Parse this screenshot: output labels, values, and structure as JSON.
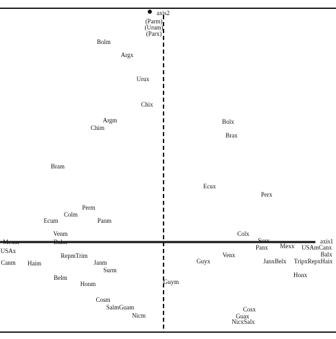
{
  "chart_data": {
    "type": "scatter",
    "x_label": "axis1",
    "y_label": "axis2",
    "xlim": [
      -2.38,
      2.51
    ],
    "ylim": [
      -1.31,
      3.4
    ],
    "points": [
      {
        "label": "(Parm)",
        "x": -0.14,
        "y": 3.2
      },
      {
        "label": "(Urum)",
        "x": -0.14,
        "y": 3.11
      },
      {
        "label": "(Parx)",
        "x": -0.14,
        "y": 3.02
      },
      {
        "label": "Bolm",
        "x": -0.87,
        "y": 2.9
      },
      {
        "label": "Argx",
        "x": -0.53,
        "y": 2.71
      },
      {
        "label": "Urux",
        "x": -0.3,
        "y": 2.36
      },
      {
        "label": "Chix",
        "x": -0.24,
        "y": 1.99
      },
      {
        "label": "Argm",
        "x": -0.78,
        "y": 1.76
      },
      {
        "label": "Chim",
        "x": -0.96,
        "y": 1.65
      },
      {
        "label": "Bolx",
        "x": 0.94,
        "y": 1.74
      },
      {
        "label": "Brax",
        "x": 0.99,
        "y": 1.54
      },
      {
        "label": "Bram",
        "x": -1.54,
        "y": 1.09
      },
      {
        "label": "Ecux",
        "x": 0.67,
        "y": 0.8
      },
      {
        "label": "Perx",
        "x": 1.5,
        "y": 0.68
      },
      {
        "label": "Perm",
        "x": -1.09,
        "y": 0.49
      },
      {
        "label": "Colm",
        "x": -1.35,
        "y": 0.39
      },
      {
        "label": "Ecum",
        "x": -1.64,
        "y": 0.3
      },
      {
        "label": "Panm",
        "x": -0.86,
        "y": 0.3
      },
      {
        "label": "Colx",
        "x": 1.16,
        "y": 0.11
      },
      {
        "label": "Venm",
        "x": -1.5,
        "y": 0.11
      },
      {
        "label": "Mexm",
        "x": -2.22,
        "y": -0.01
      },
      {
        "label": "Balm",
        "x": -1.5,
        "y": -0.01
      },
      {
        "label": "Surx",
        "x": 1.46,
        "y": 0.01
      },
      {
        "label": "Panx",
        "x": 1.43,
        "y": -0.09
      },
      {
        "label": "Mexx",
        "x": 1.8,
        "y": -0.07
      },
      {
        "label": "USAmCanx",
        "x": 2.23,
        "y": -0.09
      },
      {
        "label": "USAx",
        "x": -2.26,
        "y": -0.14
      },
      {
        "label": "RepmTrim",
        "x": -1.3,
        "y": -0.21
      },
      {
        "label": "Venx",
        "x": 0.95,
        "y": -0.2
      },
      {
        "label": "Guyx",
        "x": 0.58,
        "y": -0.29
      },
      {
        "label": "JanxBelx",
        "x": 1.62,
        "y": -0.29
      },
      {
        "label": "TripxRepxHaix",
        "x": 2.18,
        "y": -0.29
      },
      {
        "label": "Canm",
        "x": -2.26,
        "y": -0.31
      },
      {
        "label": "Haim",
        "x": -1.88,
        "y": -0.32
      },
      {
        "label": "Janm",
        "x": -0.92,
        "y": -0.31
      },
      {
        "label": "Balx",
        "x": 2.37,
        "y": -0.19
      },
      {
        "label": "Surm",
        "x": -0.78,
        "y": -0.42
      },
      {
        "label": "Honx",
        "x": 1.99,
        "y": -0.49
      },
      {
        "label": "Belm",
        "x": -1.5,
        "y": -0.53
      },
      {
        "label": "Honm",
        "x": -1.1,
        "y": -0.62
      },
      {
        "label": "Guym",
        "x": 0.11,
        "y": -0.59
      },
      {
        "label": "Cosm",
        "x": -0.88,
        "y": -0.85
      },
      {
        "label": "SalmGuam",
        "x": -0.63,
        "y": -0.96
      },
      {
        "label": "Nicm",
        "x": -0.36,
        "y": -1.08
      },
      {
        "label": "Cosx",
        "x": 1.25,
        "y": -0.99
      },
      {
        "label": "Guax",
        "x": 1.15,
        "y": -1.09
      },
      {
        "label": "NicxSalx",
        "x": 1.16,
        "y": -1.17
      }
    ]
  }
}
